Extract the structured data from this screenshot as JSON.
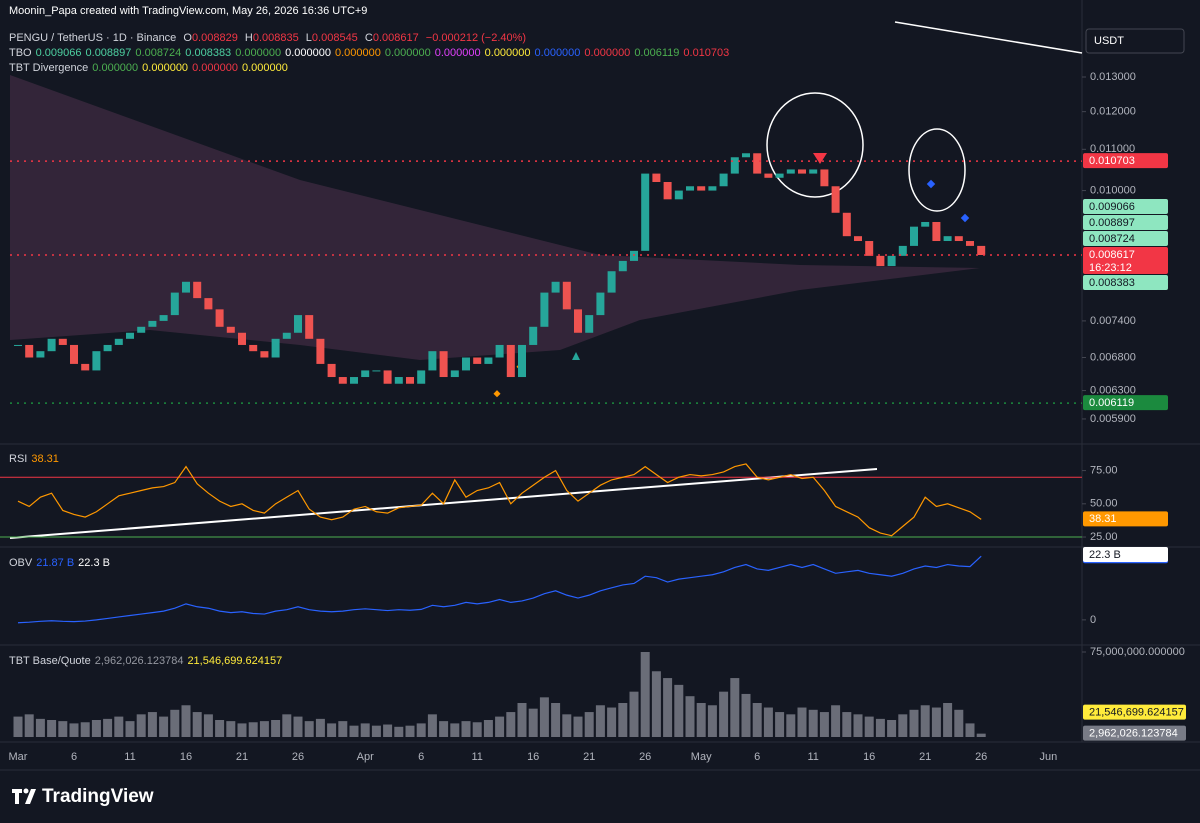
{
  "header": {
    "credit": "Moonin_Papa created with TradingView.com, May 26, 2026 16:36 UTC+9",
    "symbol": "PENGU / TetherUS · 1D · Binance",
    "ohlc": [
      {
        "k": "O",
        "v": "0.008829"
      },
      {
        "k": "H",
        "v": "0.008835"
      },
      {
        "k": "L",
        "v": "0.008545"
      },
      {
        "k": "C",
        "v": "0.008617"
      }
    ],
    "change": "−0.000212 (−2.40%)",
    "tbo": {
      "label": "TBO",
      "values": [
        {
          "text": "0.009066",
          "color": "#4dd0a1"
        },
        {
          "text": "0.008897",
          "color": "#4dd0a1"
        },
        {
          "text": "0.008724",
          "color": "#4caf50"
        },
        {
          "text": "0.008383",
          "color": "#4dd0a1"
        },
        {
          "text": "0.000000",
          "color": "#4caf50"
        },
        {
          "text": "0.000000",
          "color": "#ffffff"
        },
        {
          "text": "0.000000",
          "color": "#ff9800"
        },
        {
          "text": "0.000000",
          "color": "#4caf50"
        },
        {
          "text": "0.000000",
          "color": "#e040fb"
        },
        {
          "text": "0.000000",
          "color": "#ffeb3b"
        },
        {
          "text": "0.000000",
          "color": "#2962ff"
        },
        {
          "text": "0.000000",
          "color": "#f23645"
        },
        {
          "text": "0.006119",
          "color": "#4caf50"
        },
        {
          "text": "0.010703",
          "color": "#f23645"
        }
      ]
    },
    "tbt": {
      "label": "TBT Divergence",
      "values": [
        {
          "text": "0.000000",
          "color": "#4caf50"
        },
        {
          "text": "0.000000",
          "color": "#ffeb3b"
        },
        {
          "text": "0.000000",
          "color": "#f23645"
        },
        {
          "text": "0.000000",
          "color": "#ffeb3b"
        }
      ]
    },
    "currency": "USDT"
  },
  "branding": "TradingView",
  "chart_data": [
    {
      "type": "candlestick",
      "log_scale": true,
      "up_color": "#26a69a",
      "down_color": "#ef5350",
      "categories": [
        "Mar",
        null,
        null,
        null,
        null,
        "6",
        null,
        null,
        null,
        null,
        "11",
        null,
        null,
        null,
        null,
        "16",
        null,
        null,
        null,
        null,
        "21",
        null,
        null,
        null,
        null,
        "26",
        null,
        null,
        null,
        null,
        null,
        "Apr",
        null,
        null,
        null,
        null,
        "6",
        null,
        null,
        null,
        null,
        "11",
        null,
        null,
        null,
        null,
        "16",
        null,
        null,
        null,
        null,
        "21",
        null,
        null,
        null,
        null,
        "26",
        null,
        null,
        null,
        null,
        "May",
        null,
        null,
        null,
        null,
        "6",
        null,
        null,
        null,
        null,
        "11",
        null,
        null,
        null,
        null,
        "16",
        null,
        null,
        null,
        null,
        "21",
        null,
        null,
        null,
        null,
        "26",
        null,
        null,
        null,
        null,
        null,
        "Jun"
      ],
      "close": [
        0.007,
        0.0068,
        0.0069,
        0.0071,
        0.007,
        0.0067,
        0.0066,
        0.0069,
        0.007,
        0.0071,
        0.0072,
        0.0073,
        0.0074,
        0.0075,
        0.0079,
        0.0081,
        0.0078,
        0.0076,
        0.0073,
        0.0072,
        0.007,
        0.0069,
        0.0068,
        0.0071,
        0.0072,
        0.0075,
        0.0071,
        0.0067,
        0.0065,
        0.0064,
        0.0065,
        0.0066,
        0.0066,
        0.0064,
        0.0065,
        0.0064,
        0.0066,
        0.0069,
        0.0065,
        0.0066,
        0.0068,
        0.0067,
        0.0068,
        0.007,
        0.0065,
        0.007,
        0.0073,
        0.0079,
        0.0081,
        0.0076,
        0.0072,
        0.0075,
        0.0079,
        0.0083,
        0.0085,
        0.0087,
        0.0104,
        0.0102,
        0.0098,
        0.01,
        0.0101,
        0.01,
        0.0101,
        0.0104,
        0.0108,
        0.0109,
        0.0104,
        0.0103,
        0.0104,
        0.0105,
        0.0104,
        0.0105,
        0.0101,
        0.0095,
        0.009,
        0.0089,
        0.0086,
        0.0084,
        0.0086,
        0.0088,
        0.0092,
        0.0093,
        0.0089,
        0.009,
        0.0089,
        0.0088,
        0.008617,
        null,
        null,
        null,
        null,
        null,
        null
      ],
      "ylim": [
        0.00562,
        0.01483
      ],
      "yticks": [
        {
          "value": 0.0059,
          "label": "0.005900"
        },
        {
          "value": 0.0063,
          "label": "0.006300"
        },
        {
          "value": 0.0068,
          "label": "0.006800"
        },
        {
          "value": 0.0074,
          "label": "0.007400"
        },
        {
          "value": 0.01,
          "label": "0.010000"
        },
        {
          "value": 0.011,
          "label": "0.011000"
        },
        {
          "value": 0.012,
          "label": "0.012000"
        },
        {
          "value": 0.013,
          "label": "0.013000"
        }
      ],
      "tags": [
        {
          "value": 0.010703,
          "label": "0.010703",
          "color": "#f23645",
          "text_color": "#ffffff",
          "dotted": true
        },
        {
          "value": 0.009066,
          "label": "0.009066",
          "color": "#8ee6c0",
          "text_color": "#131722"
        },
        {
          "value": 0.008897,
          "label": "0.008897",
          "color": "#8ee6c0",
          "text_color": "#131722"
        },
        {
          "value": 0.008724,
          "label": "0.008724",
          "color": "#8ee6c0",
          "text_color": "#131722"
        },
        {
          "value": 0.008617,
          "label": "0.008617",
          "time": "16:23:12",
          "color": "#f23645",
          "text_color": "#ffffff",
          "dotted": true
        },
        {
          "value": 0.008383,
          "label": "0.008383",
          "color": "#8ee6c0",
          "text_color": "#131722"
        },
        {
          "value": 0.006119,
          "label": "0.006119",
          "color": "#1b8a3e",
          "text_color": "#ffffff",
          "dotted": true
        }
      ]
    },
    {
      "type": "line",
      "title": "RSI",
      "color": "#ff9800",
      "values": [
        52,
        48,
        55,
        58,
        45,
        42,
        40,
        44,
        50,
        56,
        58,
        60,
        62,
        63,
        66,
        78,
        65,
        58,
        52,
        48,
        50,
        45,
        43,
        50,
        55,
        60,
        46,
        40,
        38,
        40,
        46,
        48,
        44,
        43,
        47,
        48,
        49,
        58,
        50,
        68,
        55,
        60,
        62,
        66,
        50,
        58,
        64,
        70,
        75,
        60,
        52,
        58,
        64,
        68,
        70,
        72,
        78,
        72,
        66,
        70,
        72,
        71,
        72,
        74,
        78,
        80,
        70,
        68,
        70,
        72,
        69,
        70,
        60,
        48,
        44,
        40,
        32,
        28,
        26,
        33,
        40,
        55,
        48,
        50,
        47,
        44,
        38.31,
        null,
        null,
        null,
        null,
        null,
        null
      ],
      "ylim": [
        19,
        92
      ],
      "yticks": [
        {
          "value": 25,
          "label": "25.00"
        },
        {
          "value": 50,
          "label": "50.00"
        },
        {
          "value": 75,
          "label": "75.00"
        }
      ],
      "bands": [
        {
          "value": 70,
          "color": "#f23645"
        },
        {
          "value": 25,
          "color": "#4caf50"
        }
      ]
    },
    {
      "type": "line",
      "title": "OBV",
      "color": "#2962ff",
      "values": [
        -1,
        -0.8,
        -0.5,
        -0.3,
        -0.5,
        -0.6,
        -0.4,
        0,
        0.5,
        1,
        1.5,
        2,
        2.5,
        3,
        4,
        5.5,
        4.5,
        4,
        3,
        2.5,
        2.8,
        2.2,
        2,
        3,
        3.5,
        4.5,
        3.5,
        3,
        2.8,
        3,
        3.5,
        3.8,
        3.5,
        3.2,
        3.5,
        3.3,
        3.6,
        5,
        4.5,
        5,
        6,
        5.5,
        6,
        7,
        6,
        6.5,
        7.5,
        9,
        10,
        8.5,
        7.5,
        8.5,
        10,
        11,
        12,
        12.5,
        15,
        14.5,
        13,
        14,
        14.5,
        15,
        15.5,
        16.5,
        18,
        19,
        17.5,
        17,
        18,
        19,
        18,
        19,
        17.5,
        16,
        16.5,
        17,
        16,
        15.5,
        15,
        16,
        17.5,
        18.5,
        18,
        19,
        18.5,
        18.3,
        21.87,
        null,
        null,
        null,
        null,
        null,
        null
      ],
      "ylim": [
        -7.6,
        24
      ],
      "yticks": [
        0
      ],
      "tags": [
        {
          "value": 21.87,
          "label": "21.87 B",
          "color": "#2962ff",
          "text_color": "#ffffff"
        },
        {
          "value": 22.3,
          "label": "22.3 B",
          "color": "#ffffff",
          "text_color": "#131722"
        }
      ]
    },
    {
      "type": "bar",
      "title": "TBT Base/Quote",
      "color": "#6a6d78",
      "values": [
        18000000,
        20000000,
        16000000,
        15000000,
        14000000,
        12000000,
        13000000,
        15000000,
        16000000,
        18000000,
        14000000,
        20000000,
        22000000,
        18000000,
        24000000,
        28000000,
        22000000,
        20000000,
        15000000,
        14000000,
        12000000,
        13000000,
        14000000,
        15000000,
        20000000,
        18000000,
        14000000,
        16000000,
        12000000,
        14000000,
        10000000,
        12000000,
        10000000,
        11000000,
        9000000,
        10000000,
        12000000,
        20000000,
        14000000,
        12000000,
        14000000,
        13000000,
        15000000,
        18000000,
        22000000,
        30000000,
        25000000,
        35000000,
        30000000,
        20000000,
        18000000,
        22000000,
        28000000,
        26000000,
        30000000,
        40000000,
        75000000,
        58000000,
        52000000,
        46000000,
        36000000,
        30000000,
        28000000,
        40000000,
        52000000,
        38000000,
        30000000,
        26000000,
        22000000,
        20000000,
        26000000,
        24000000,
        22000000,
        28000000,
        22000000,
        20000000,
        18000000,
        16000000,
        15000000,
        20000000,
        24000000,
        28000000,
        26000000,
        30000000,
        24000000,
        12000000,
        2962026.123784,
        null,
        null,
        null,
        null,
        null,
        null
      ],
      "ylim": [
        0,
        75000000
      ],
      "yticks": [
        {
          "value": 75000000,
          "label": "75,000,000.000000"
        }
      ],
      "tags": [
        {
          "value": 21546699.624157,
          "label": "21,546,699.624157",
          "color": "#ffeb3b",
          "text_color": "#131722"
        },
        {
          "value": 2962026.123784,
          "label": "2,962,026.123784",
          "color": "#787b86",
          "text_color": "#ffffff"
        }
      ]
    }
  ]
}
